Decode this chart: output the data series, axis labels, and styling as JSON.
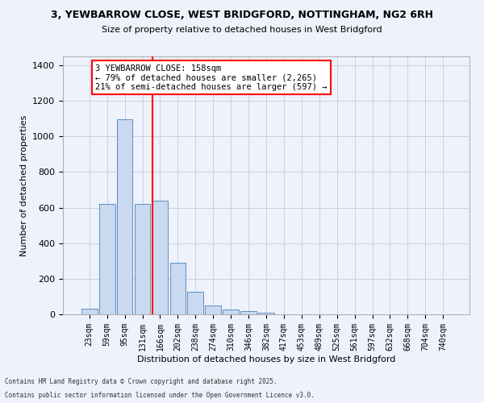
{
  "title1": "3, YEWBARROW CLOSE, WEST BRIDGFORD, NOTTINGHAM, NG2 6RH",
  "title2": "Size of property relative to detached houses in West Bridgford",
  "xlabel": "Distribution of detached houses by size in West Bridgford",
  "ylabel": "Number of detached properties",
  "bin_labels": [
    "23sqm",
    "59sqm",
    "95sqm",
    "131sqm",
    "166sqm",
    "202sqm",
    "238sqm",
    "274sqm",
    "310sqm",
    "346sqm",
    "382sqm",
    "417sqm",
    "453sqm",
    "489sqm",
    "525sqm",
    "561sqm",
    "597sqm",
    "632sqm",
    "668sqm",
    "704sqm",
    "740sqm"
  ],
  "bar_values": [
    30,
    620,
    1095,
    620,
    640,
    290,
    125,
    50,
    25,
    20,
    10,
    0,
    0,
    0,
    0,
    0,
    0,
    0,
    0,
    0,
    0
  ],
  "bar_color": "#c9d9f0",
  "bar_edge_color": "#5a8fc2",
  "vline_color": "red",
  "vline_pos": 3.57,
  "annotation_text": "3 YEWBARROW CLOSE: 158sqm\n← 79% of detached houses are smaller (2,265)\n21% of semi-detached houses are larger (597) →",
  "annotation_box_color": "white",
  "annotation_box_edge": "red",
  "ylim": [
    0,
    1450
  ],
  "yticks": [
    0,
    200,
    400,
    600,
    800,
    1000,
    1200,
    1400
  ],
  "footer1": "Contains HM Land Registry data © Crown copyright and database right 2025.",
  "footer2": "Contains public sector information licensed under the Open Government Licence v3.0.",
  "bg_color": "#eef2fb",
  "grid_color": "#c8d0e8"
}
